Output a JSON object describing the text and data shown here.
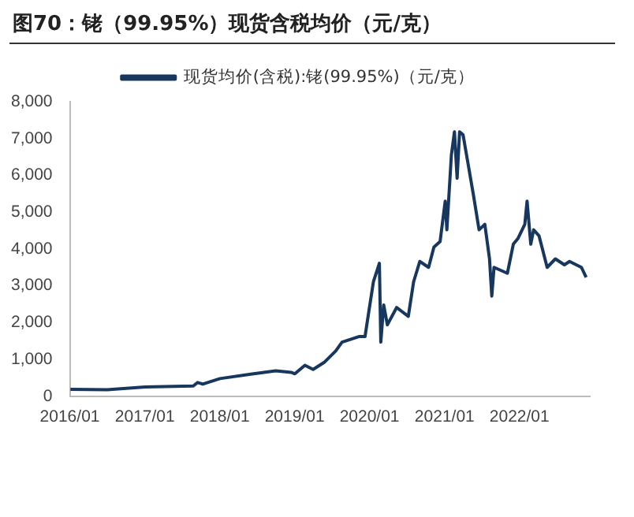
{
  "chart_data": {
    "type": "line",
    "title": "图70：铑（99.95%）现货含税均价（元/克）",
    "x": [
      "2016-01-04",
      "2016-07-01",
      "2017-01-03",
      "2017-08-25",
      "2017-09-15",
      "2017-10-10",
      "2018-01-02",
      "2018-06-01",
      "2018-10-01",
      "2018-12-15",
      "2019-01-02",
      "2019-02-20",
      "2019-04-01",
      "2019-05-25",
      "2019-07-20",
      "2019-08-20",
      "2019-11-10",
      "2019-12-10",
      "2019-12-25",
      "2020-01-20",
      "2020-02-18",
      "2020-02-25",
      "2020-03-10",
      "2020-03-28",
      "2020-05-12",
      "2020-07-08",
      "2020-08-03",
      "2020-09-02",
      "2020-10-15",
      "2020-11-10",
      "2020-12-10",
      "2021-01-04",
      "2021-01-12",
      "2021-02-03",
      "2021-02-18",
      "2021-03-03",
      "2021-03-15",
      "2021-04-01",
      "2021-04-23",
      "2021-05-22",
      "2021-06-18",
      "2021-07-16",
      "2021-08-08",
      "2021-08-19",
      "2021-08-30",
      "2021-11-03",
      "2021-12-02",
      "2021-12-24",
      "2022-01-27",
      "2022-02-07",
      "2022-02-25",
      "2022-03-11",
      "2022-04-06",
      "2022-05-16",
      "2022-06-25",
      "2022-08-08",
      "2022-09-02",
      "2022-10-30",
      "2022-11-22"
    ],
    "series": [
      {
        "name": "现货均价(含税):铑(99.95%)（元/克）",
        "color": "#17375e",
        "values": [
          190,
          180,
          250,
          280,
          375,
          330,
          480,
          600,
          690,
          650,
          610,
          840,
          730,
          920,
          1230,
          1470,
          1620,
          1620,
          2170,
          3110,
          3610,
          1470,
          2480,
          1940,
          2410,
          2170,
          3110,
          3660,
          3500,
          4050,
          4200,
          5300,
          4520,
          6550,
          7180,
          5920,
          7180,
          7100,
          6390,
          5450,
          4520,
          4670,
          3730,
          2720,
          3500,
          3340,
          4130,
          4280,
          4670,
          5300,
          4130,
          4520,
          4360,
          3500,
          3730,
          3570,
          3660,
          3500,
          3230
        ]
      }
    ],
    "xlim": [
      "2016-01-01",
      "2022-12-10"
    ],
    "xticks": [
      {
        "value": "2016-01-01",
        "label": "2016/01"
      },
      {
        "value": "2017-01-01",
        "label": "2017/01"
      },
      {
        "value": "2018-01-01",
        "label": "2018/01"
      },
      {
        "value": "2019-01-01",
        "label": "2019/01"
      },
      {
        "value": "2020-01-01",
        "label": "2020/01"
      },
      {
        "value": "2021-01-01",
        "label": "2021/01"
      },
      {
        "value": "2022-01-01",
        "label": "2022/01"
      }
    ],
    "ylim": [
      0,
      8000
    ],
    "yticks": [
      {
        "value": 0,
        "label": "0"
      },
      {
        "value": 1000,
        "label": "1,000"
      },
      {
        "value": 2000,
        "label": "2,000"
      },
      {
        "value": 3000,
        "label": "3,000"
      },
      {
        "value": 4000,
        "label": "4,000"
      },
      {
        "value": 5000,
        "label": "5,000"
      },
      {
        "value": 6000,
        "label": "6,000"
      },
      {
        "value": 7000,
        "label": "7,000"
      },
      {
        "value": 8000,
        "label": "8,000"
      }
    ],
    "grid": false,
    "legend": "top",
    "marker": "none",
    "line_style": "solid"
  }
}
